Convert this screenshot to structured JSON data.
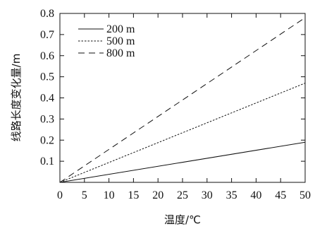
{
  "chart_data": {
    "type": "line",
    "title": "",
    "xlabel": "温度/℃",
    "ylabel": "线路长度变化量/m",
    "xlim": [
      0,
      50
    ],
    "ylim": [
      0,
      0.8
    ],
    "x_ticks": [
      0,
      5,
      10,
      15,
      20,
      25,
      30,
      35,
      40,
      45,
      50
    ],
    "y_ticks": [
      0.1,
      0.2,
      0.3,
      0.4,
      0.5,
      0.6,
      0.7,
      0.8
    ],
    "x_tick_labels": [
      "0",
      "5",
      "10",
      "15",
      "20",
      "25",
      "30",
      "35",
      "40",
      "45",
      "50"
    ],
    "y_tick_labels": [
      "0.1",
      "0.2",
      "0.3",
      "0.4",
      "0.5",
      "0.6",
      "0.7",
      "0.8"
    ],
    "grid": false,
    "legend_position": "top-left",
    "series": [
      {
        "name": "200 m",
        "style": "solid",
        "x": [
          0,
          50
        ],
        "values": [
          0,
          0.19
        ]
      },
      {
        "name": "500 m",
        "style": "dotted",
        "x": [
          0,
          50
        ],
        "values": [
          0,
          0.47
        ]
      },
      {
        "name": "800 m",
        "style": "dashed",
        "x": [
          0,
          50
        ],
        "values": [
          0,
          0.78
        ]
      }
    ]
  }
}
